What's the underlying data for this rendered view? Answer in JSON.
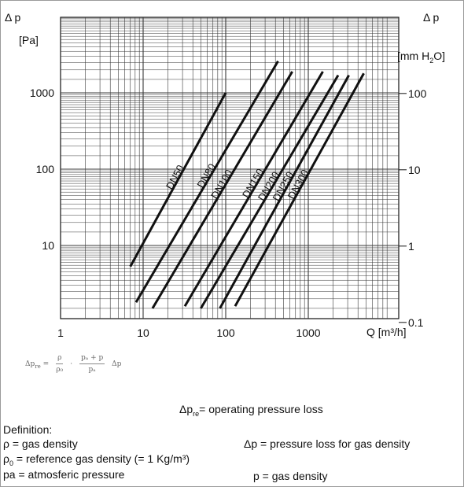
{
  "left_axis": {
    "symbol": "Δ p",
    "unit": "[Pa]"
  },
  "right_axis": {
    "symbol": "Δ p",
    "unit_prefix": "[mm H",
    "unit_sub": "2",
    "unit_suffix": "O]"
  },
  "x_axis": {
    "label": "Q [m³/h]"
  },
  "formula": {
    "lhs": "Δp",
    "lhs_sub": "re",
    "eq": "=",
    "frac1_num": "ρ",
    "frac1_den": "ρ₀",
    "dot": "·",
    "frac2_num": "pₐ + p",
    "frac2_den": "pₐ",
    "rhs": "Δp"
  },
  "notes": {
    "operating": "Δp",
    "operating_sub": "re",
    "operating_rest": "= operating pressure loss",
    "definition_title": "Definition:",
    "rho": "ρ = gas density",
    "dp": "Δp = pressure loss for gas density",
    "rho0_pre": "ρ",
    "rho0_sub": "0",
    "rho0_post": " = reference gas density (= 1 Kg/m³)",
    "pa": "pa = atmosferic pressure",
    "p": "p = gas density"
  },
  "chart_data": {
    "type": "line",
    "x_scale": "log",
    "y_scale": "log",
    "xlim": [
      1,
      5000
    ],
    "ylim": [
      0.8,
      4000
    ],
    "x_tick_labels": [
      "1",
      "10",
      "100",
      "1000"
    ],
    "y_left_tick_labels": [
      "10",
      "100",
      "1000"
    ],
    "y_right_tick_labels": [
      "0.1",
      "1",
      "10",
      "100"
    ],
    "grid": true,
    "series": [
      {
        "name": "DN50",
        "x": [
          7,
          100
        ],
        "y": [
          5.3,
          1000
        ]
      },
      {
        "name": "DN80",
        "x": [
          8.2,
          430
        ],
        "y": [
          1.8,
          2600
        ]
      },
      {
        "name": "DN100",
        "x": [
          13,
          640
        ],
        "y": [
          1.5,
          1900
        ]
      },
      {
        "name": "DN150",
        "x": [
          32,
          1500
        ],
        "y": [
          1.6,
          1900
        ]
      },
      {
        "name": "DN200",
        "x": [
          50,
          2300
        ],
        "y": [
          1.5,
          1700
        ]
      },
      {
        "name": "DN250",
        "x": [
          85,
          3100
        ],
        "y": [
          1.5,
          1700
        ]
      },
      {
        "name": "DN300",
        "x": [
          130,
          4700
        ],
        "y": [
          1.6,
          1800
        ]
      }
    ],
    "series_label_color": "#111111",
    "line_color": "#111111",
    "grid_color": "#3a3a3a"
  }
}
